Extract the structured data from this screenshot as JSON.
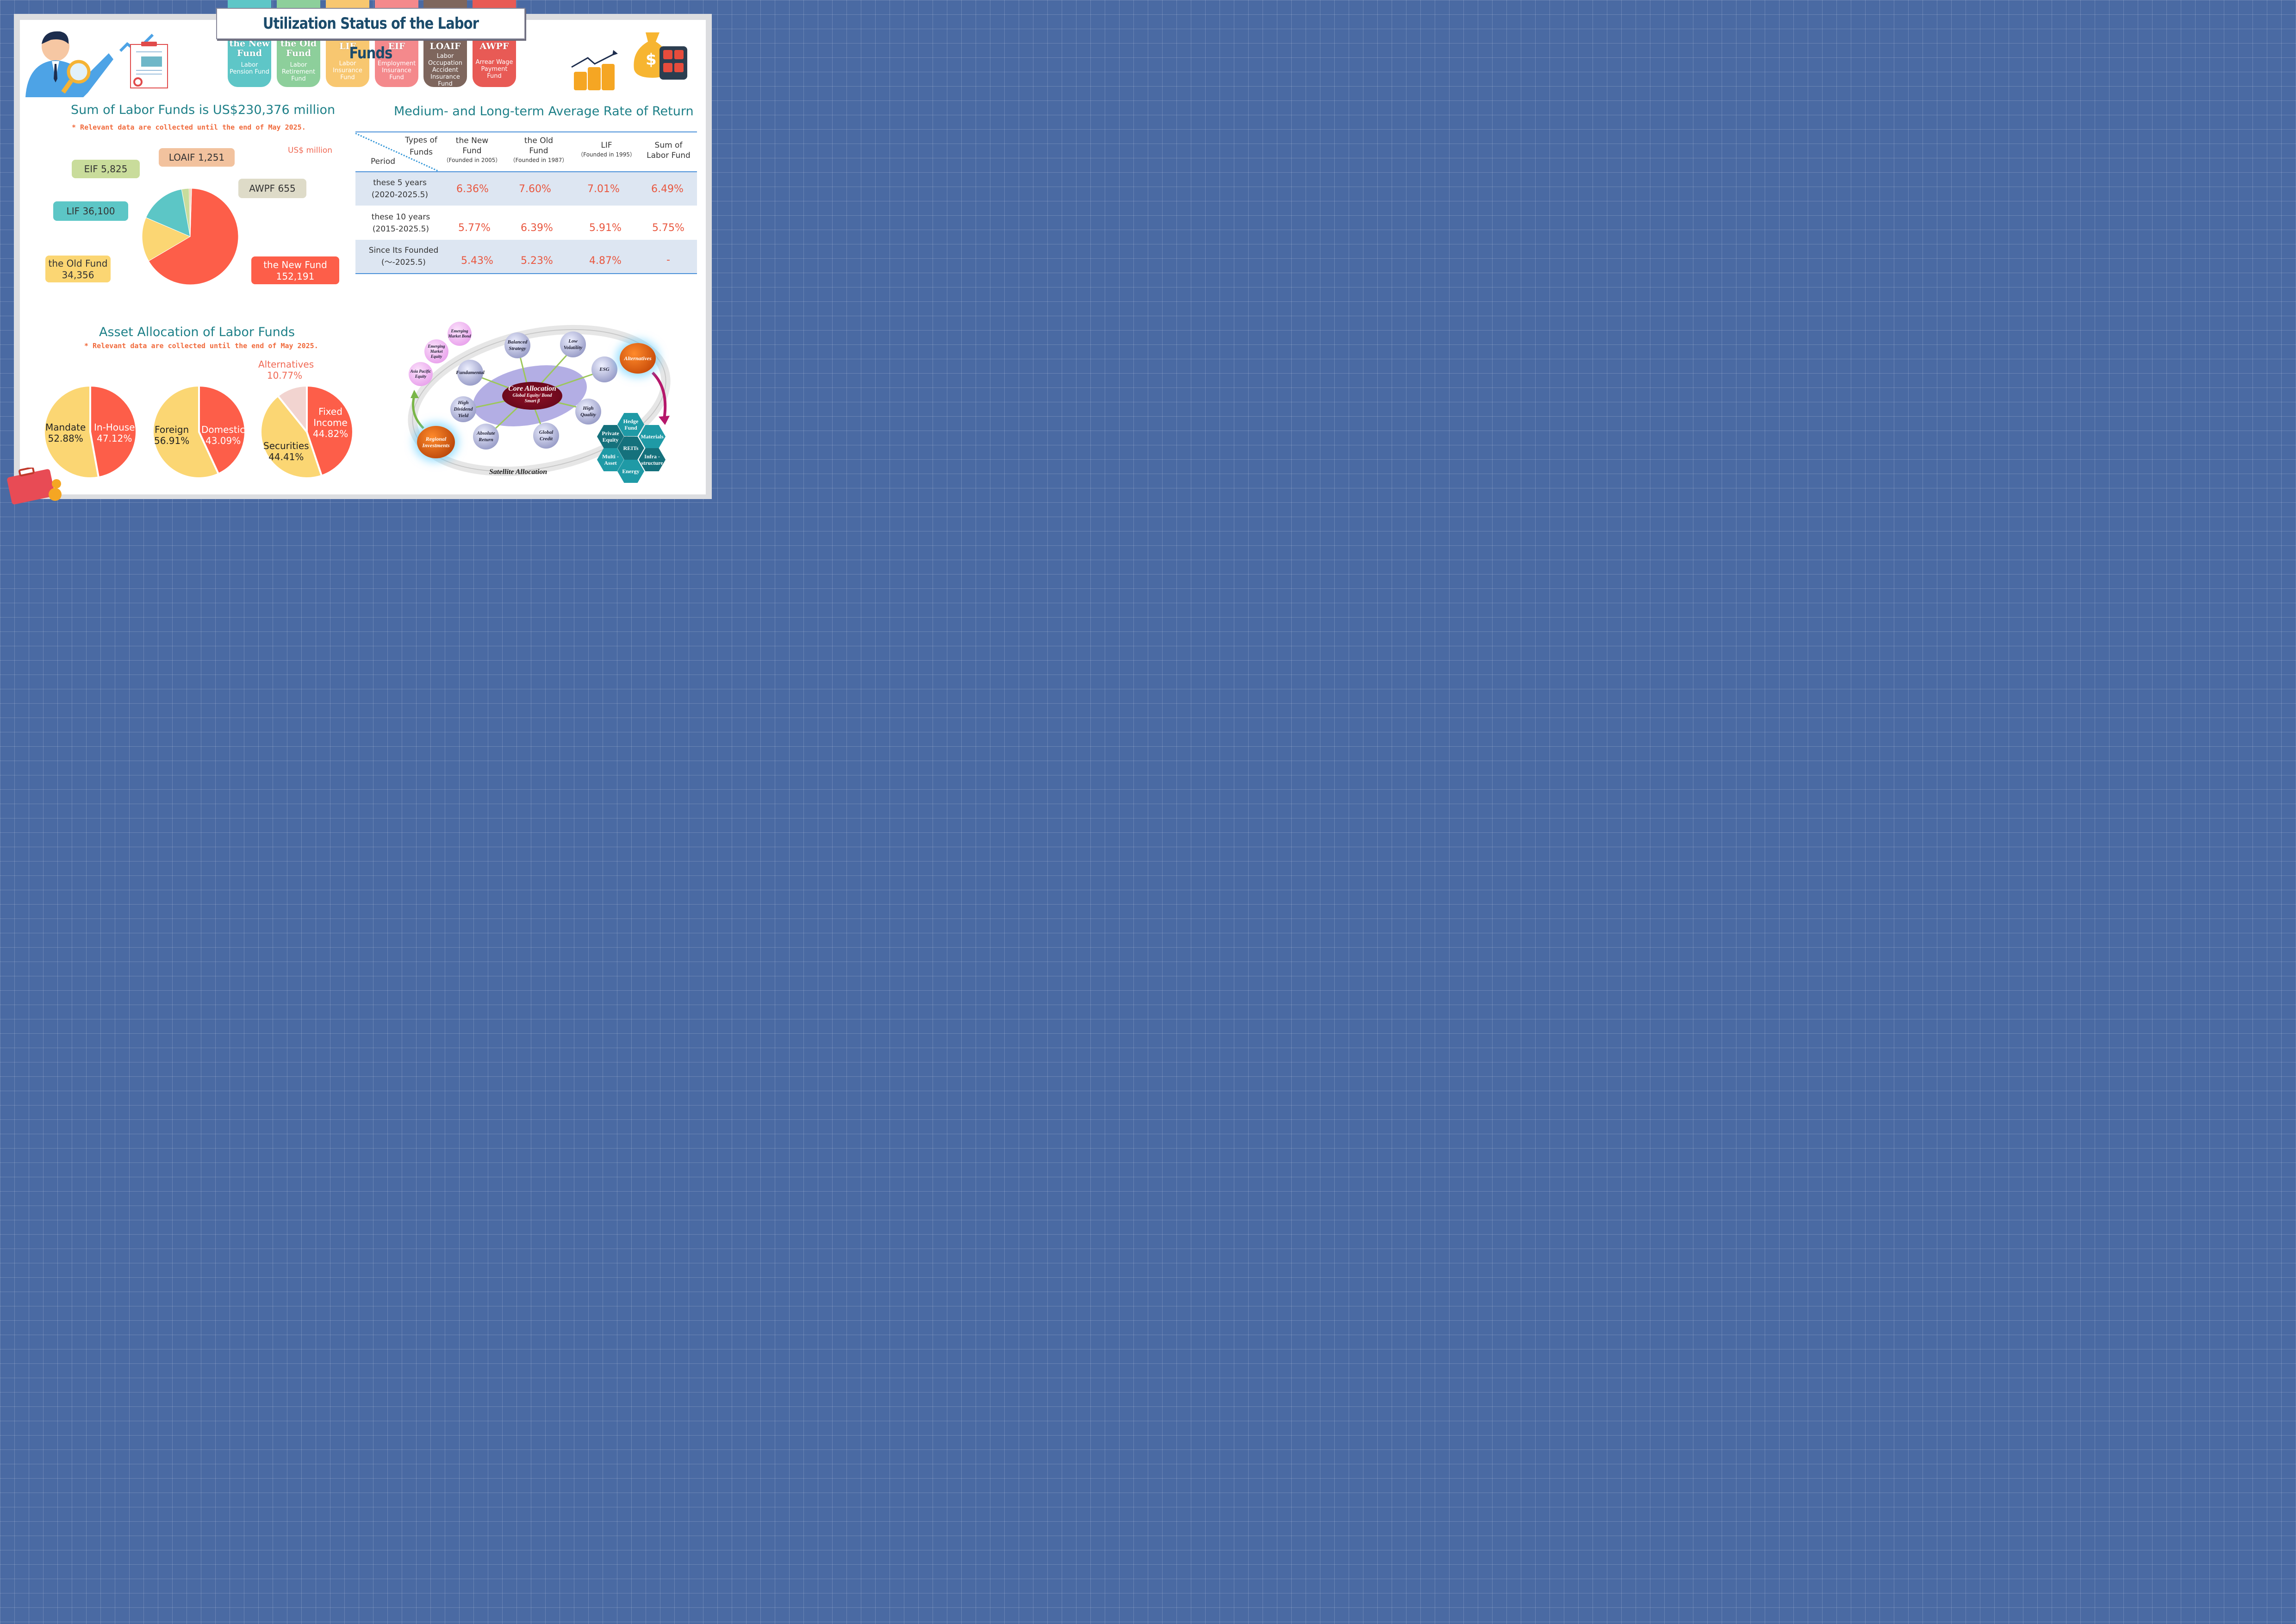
{
  "title": "Utilization Status of the Labor Funds",
  "fund_tabs": [
    {
      "abbr": "the New Fund",
      "full": "Labor Pension Fund",
      "color": "#5ec6c7"
    },
    {
      "abbr": "the Old Fund",
      "full": "Labor Retirement Fund",
      "color": "#8dcf9b"
    },
    {
      "abbr": "LIF",
      "full": "Labor Insurance Fund",
      "color": "#f8c770"
    },
    {
      "abbr": "EIF",
      "full": "Employment Insurance Fund",
      "color": "#f4898c"
    },
    {
      "abbr": "LOAIF",
      "full": "Labor Occupation Accident Insurance Fund",
      "color": "#7e665d"
    },
    {
      "abbr": "AWPF",
      "full": "Arrear Wage Payment Fund",
      "color": "#e85a55"
    }
  ],
  "sum_section": {
    "heading": "Sum of Labor Funds is US$230,376 million",
    "note": "* Relevant data are collected until the end of May 2025.",
    "unit": "US$ million"
  },
  "returns_section": {
    "heading": "Medium- and Long-term Average Rate of Return",
    "header_types": "Types of Funds",
    "header_period": "Period",
    "columns": [
      {
        "name": "the New Fund",
        "sub": "（Founded in 2005）"
      },
      {
        "name": "the Old Fund",
        "sub": "（Founded in 1987）"
      },
      {
        "name": "LIF",
        "sub": "（Founded in 1995）"
      },
      {
        "name": "Sum of Labor Fund",
        "sub": ""
      }
    ],
    "rows": [
      {
        "period": "these 5 years",
        "range": "(2020-2025.5)",
        "values": [
          "6.36%",
          "7.60%",
          "7.01%",
          "6.49%"
        ]
      },
      {
        "period": "these 10 years",
        "range": "(2015-2025.5)",
        "values": [
          "5.77%",
          "6.39%",
          "5.91%",
          "5.75%"
        ]
      },
      {
        "period": "Since Its Founded",
        "range": "(～-2025.5)",
        "values": [
          "5.43%",
          "5.23%",
          "4.87%",
          "-"
        ]
      }
    ]
  },
  "allocation_section": {
    "heading": "Asset Allocation of Labor Funds",
    "note": "* Relevant data are collected until the end of May 2025."
  },
  "strategy": {
    "core_title": "Core Allocation",
    "core_sub": "Global Equity/ Bond Smart β",
    "satellite_label": "Satellite Allocation",
    "alternatives": "Alternatives",
    "regional": "Regional Investments",
    "core_nodes": [
      "Balanced Strategy",
      "Low Volatility",
      "ESG",
      "High Quality",
      "Global Credit",
      "Absolute Return",
      "High Dividend Yield",
      "Fundamental"
    ],
    "regional_nodes": [
      "Emerging Market Bond",
      "Emerging Market Equity",
      "Asia Pacific Equity"
    ],
    "alt_hexes": [
      "Hedge Fund",
      "Private Equity",
      "Materials",
      "REITs",
      "Multi -Asset",
      "Infra -structure",
      "Energy"
    ]
  },
  "chart_data": [
    {
      "type": "pie",
      "title": "Sum of Labor Funds is US$230,376 million",
      "unit": "US$ million",
      "series": [
        {
          "name": "the New Fund",
          "value": 152191,
          "label": "152,191",
          "color": "#fd5e49"
        },
        {
          "name": "the Old Fund",
          "value": 34356,
          "label": "34,356",
          "color": "#fbd673"
        },
        {
          "name": "LIF",
          "value": 36100,
          "label": "36,100",
          "color": "#5cc6c6"
        },
        {
          "name": "EIF",
          "value": 5825,
          "label": "5,825",
          "color": "#c8dc9c"
        },
        {
          "name": "LOAIF",
          "value": 1251,
          "label": "1,251",
          "color": "#f2c29e"
        },
        {
          "name": "AWPF",
          "value": 655,
          "label": "655",
          "color": "#dedbc8"
        }
      ]
    },
    {
      "type": "pie",
      "series": [
        {
          "name": "In-House",
          "value": 47.12,
          "label": "47.12%",
          "color": "#fd5e49"
        },
        {
          "name": "Mandate",
          "value": 52.88,
          "label": "52.88%",
          "color": "#fbd673"
        }
      ]
    },
    {
      "type": "pie",
      "series": [
        {
          "name": "Domestic",
          "value": 43.09,
          "label": "43.09%",
          "color": "#fd5e49"
        },
        {
          "name": "Foreign",
          "value": 56.91,
          "label": "56.91%",
          "color": "#fbd673"
        }
      ]
    },
    {
      "type": "pie",
      "series": [
        {
          "name": "Fixed Income",
          "value": 44.82,
          "label": "44.82%",
          "color": "#fd5e49"
        },
        {
          "name": "Securities",
          "value": 44.41,
          "label": "44.41%",
          "color": "#fbd673"
        },
        {
          "name": "Alternatives",
          "value": 10.77,
          "label": "10.77%",
          "color": "#f2d4d0"
        }
      ]
    }
  ]
}
